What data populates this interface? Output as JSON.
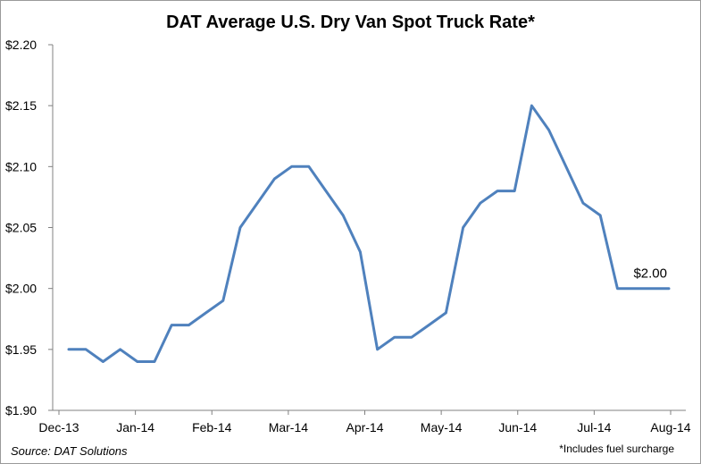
{
  "chart_data": {
    "type": "line",
    "title": "DAT Average U.S. Dry Van Spot Truck Rate*",
    "xlabel": "",
    "ylabel": "",
    "ylim": [
      1.9,
      2.2
    ],
    "yticks": [
      1.9,
      1.95,
      2.0,
      2.05,
      2.1,
      2.15,
      2.2
    ],
    "ytick_labels": [
      "$1.90",
      "$1.95",
      "$2.00",
      "$2.05",
      "$2.10",
      "$2.15",
      "$2.20"
    ],
    "xticks": [
      "Dec-13",
      "Jan-14",
      "Feb-14",
      "Mar-14",
      "Apr-14",
      "May-14",
      "Jun-14",
      "Jul-14",
      "Aug-14"
    ],
    "grid": false,
    "legend": "none",
    "line_color": "#4f81bd",
    "series": [
      {
        "values": [
          1.95,
          1.95,
          1.94,
          1.95,
          1.94,
          1.94,
          1.97,
          1.97,
          1.98,
          1.99,
          2.05,
          2.07,
          2.09,
          2.1,
          2.1,
          2.08,
          2.06,
          2.03,
          1.95,
          1.96,
          1.96,
          1.97,
          1.98,
          2.05,
          2.07,
          2.08,
          2.08,
          2.15,
          2.13,
          2.1,
          2.07,
          2.06,
          2.0,
          2.0,
          2.0,
          2.0
        ]
      }
    ],
    "annotations": [
      {
        "text": "$2.00",
        "value": 2.0
      }
    ]
  },
  "source": "Source: DAT Solutions",
  "footnote": "*Includes fuel surcharge"
}
